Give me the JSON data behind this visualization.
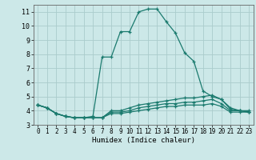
{
  "xlabel": "Humidex (Indice chaleur)",
  "background_color": "#cce8e8",
  "grid_color": "#aacccc",
  "line_color": "#1a7a6e",
  "xlim": [
    -0.5,
    23.5
  ],
  "ylim": [
    3.0,
    11.5
  ],
  "xticks": [
    0,
    1,
    2,
    3,
    4,
    5,
    6,
    7,
    8,
    9,
    10,
    11,
    12,
    13,
    14,
    15,
    16,
    17,
    18,
    19,
    20,
    21,
    22,
    23
  ],
  "yticks": [
    3,
    4,
    5,
    6,
    7,
    8,
    9,
    10,
    11
  ],
  "curves": [
    {
      "x": [
        0,
        1,
        2,
        3,
        4,
        5,
        6,
        7,
        8,
        9,
        10,
        11,
        12,
        13,
        14,
        15,
        16,
        17,
        18,
        19,
        20,
        21,
        22,
        23
      ],
      "y": [
        4.4,
        4.2,
        3.8,
        3.6,
        3.5,
        3.5,
        3.6,
        7.8,
        7.8,
        9.6,
        9.6,
        11.0,
        11.2,
        11.2,
        10.3,
        9.5,
        8.1,
        7.5,
        5.4,
        5.0,
        4.8,
        4.2,
        4.0,
        4.0
      ]
    },
    {
      "x": [
        0,
        1,
        2,
        3,
        4,
        5,
        6,
        7,
        8,
        9,
        10,
        11,
        12,
        13,
        14,
        15,
        16,
        17,
        18,
        19,
        20,
        21,
        22,
        23
      ],
      "y": [
        4.4,
        4.2,
        3.8,
        3.6,
        3.5,
        3.5,
        3.5,
        3.5,
        4.0,
        4.0,
        4.2,
        4.4,
        4.5,
        4.6,
        4.7,
        4.8,
        4.9,
        4.9,
        5.0,
        5.1,
        4.8,
        4.1,
        4.0,
        3.9
      ]
    },
    {
      "x": [
        0,
        1,
        2,
        3,
        4,
        5,
        6,
        7,
        8,
        9,
        10,
        11,
        12,
        13,
        14,
        15,
        16,
        17,
        18,
        19,
        20,
        21,
        22,
        23
      ],
      "y": [
        4.4,
        4.2,
        3.8,
        3.6,
        3.5,
        3.5,
        3.5,
        3.5,
        3.9,
        3.9,
        4.0,
        4.2,
        4.3,
        4.4,
        4.5,
        4.5,
        4.6,
        4.6,
        4.7,
        4.8,
        4.5,
        4.0,
        4.0,
        3.9
      ]
    },
    {
      "x": [
        0,
        1,
        2,
        3,
        4,
        5,
        6,
        7,
        8,
        9,
        10,
        11,
        12,
        13,
        14,
        15,
        16,
        17,
        18,
        19,
        20,
        21,
        22,
        23
      ],
      "y": [
        4.4,
        4.2,
        3.8,
        3.6,
        3.5,
        3.5,
        3.5,
        3.5,
        3.8,
        3.8,
        3.9,
        4.0,
        4.1,
        4.2,
        4.3,
        4.3,
        4.4,
        4.4,
        4.4,
        4.5,
        4.3,
        3.9,
        3.9,
        3.9
      ]
    }
  ]
}
